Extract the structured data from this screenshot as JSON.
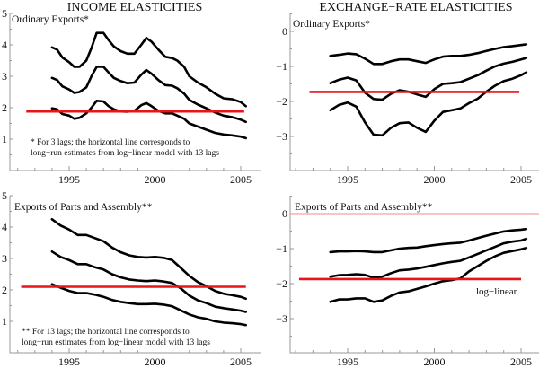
{
  "chart_data": [
    {
      "type": "line",
      "column_title": "INCOME ELASTICITIES",
      "title": "Ordinary Exports*",
      "note": [
        "* For 3 lags; the horizontal line corresponds to",
        "long−run estimates from log−linear model with 13 lags"
      ],
      "xticks": [
        1995,
        2000,
        2005
      ],
      "xlim": [
        1991.5,
        2006
      ],
      "yticks": [
        1,
        2,
        3,
        4,
        5
      ],
      "ylim": [
        0,
        5
      ],
      "hline": {
        "y": 1.88,
        "x": [
          1992.5,
          2005.2
        ],
        "color": "#e8141b"
      },
      "series": [
        {
          "name": "upper",
          "x": [
            1994,
            1994.3,
            1994.6,
            1995,
            1995.3,
            1995.6,
            1996,
            1996.3,
            1996.6,
            1997,
            1997.3,
            1997.6,
            1998,
            1998.4,
            1998.8,
            1999.2,
            1999.5,
            1999.8,
            2000.2,
            2000.6,
            2001,
            2001.3,
            2001.7,
            2002,
            2002.5,
            2003,
            2003.5,
            2004,
            2004.5,
            2005,
            2005.3
          ],
          "values": [
            3.92,
            3.85,
            3.6,
            3.45,
            3.3,
            3.3,
            3.5,
            3.9,
            4.38,
            4.38,
            4.15,
            3.95,
            3.8,
            3.72,
            3.72,
            4.0,
            4.22,
            4.1,
            3.85,
            3.62,
            3.58,
            3.5,
            3.3,
            3.0,
            2.8,
            2.65,
            2.45,
            2.3,
            2.27,
            2.18,
            2.05
          ]
        },
        {
          "name": "middle",
          "x": [
            1994,
            1994.3,
            1994.6,
            1995,
            1995.3,
            1995.6,
            1996,
            1996.3,
            1996.6,
            1997,
            1997.3,
            1997.6,
            1998,
            1998.4,
            1998.8,
            1999.2,
            1999.5,
            1999.8,
            2000.2,
            2000.6,
            2001,
            2001.3,
            2001.7,
            2002,
            2002.5,
            2003,
            2003.5,
            2004,
            2004.5,
            2005,
            2005.3
          ],
          "values": [
            2.95,
            2.88,
            2.68,
            2.58,
            2.47,
            2.5,
            2.65,
            3.0,
            3.3,
            3.3,
            3.12,
            2.95,
            2.85,
            2.78,
            2.8,
            3.05,
            3.2,
            3.08,
            2.88,
            2.72,
            2.7,
            2.62,
            2.45,
            2.25,
            2.1,
            1.98,
            1.85,
            1.75,
            1.7,
            1.62,
            1.55
          ]
        },
        {
          "name": "lower",
          "x": [
            1994,
            1994.3,
            1994.6,
            1995,
            1995.3,
            1995.6,
            1996,
            1996.3,
            1996.6,
            1997,
            1997.3,
            1997.6,
            1998,
            1998.4,
            1998.8,
            1999.2,
            1999.5,
            1999.8,
            2000.2,
            2000.6,
            2001,
            2001.3,
            2001.7,
            2002,
            2002.5,
            2003,
            2003.5,
            2004,
            2004.5,
            2005,
            2005.3
          ],
          "values": [
            1.98,
            1.95,
            1.8,
            1.75,
            1.65,
            1.68,
            1.82,
            2.0,
            2.22,
            2.2,
            2.05,
            1.95,
            1.88,
            1.87,
            1.9,
            2.08,
            2.15,
            2.05,
            1.9,
            1.82,
            1.82,
            1.75,
            1.65,
            1.5,
            1.4,
            1.3,
            1.2,
            1.15,
            1.12,
            1.08,
            1.03
          ]
        }
      ]
    },
    {
      "type": "line",
      "column_title": "EXCHANGE−RATE ELASTICITIES",
      "title": "Ordinary Exports*",
      "xticks": [
        1995,
        2000,
        2005
      ],
      "xlim": [
        1991.5,
        2006
      ],
      "yticks": [
        0,
        -1,
        -2,
        -3
      ],
      "ylim": [
        -4,
        0.5
      ],
      "hline": {
        "y": -1.73,
        "x": [
          1992.8,
          2004.9
        ],
        "color": "#e8141b"
      },
      "series": [
        {
          "name": "upper",
          "x": [
            1994,
            1994.5,
            1995,
            1995.5,
            1996,
            1996.5,
            1997,
            1997.5,
            1998,
            1998.5,
            1999,
            1999.5,
            2000,
            2000.5,
            2001,
            2001.5,
            2002,
            2002.5,
            2003,
            2003.5,
            2004,
            2004.5,
            2005,
            2005.3
          ],
          "values": [
            -0.7,
            -0.67,
            -0.63,
            -0.65,
            -0.78,
            -0.93,
            -0.93,
            -0.85,
            -0.8,
            -0.8,
            -0.85,
            -0.9,
            -0.8,
            -0.72,
            -0.7,
            -0.7,
            -0.67,
            -0.62,
            -0.56,
            -0.5,
            -0.45,
            -0.42,
            -0.39,
            -0.37
          ]
        },
        {
          "name": "middle",
          "x": [
            1994,
            1994.5,
            1995,
            1995.5,
            1996,
            1996.5,
            1997,
            1997.5,
            1998,
            1998.5,
            1999,
            1999.5,
            2000,
            2000.5,
            2001,
            2001.5,
            2002,
            2002.5,
            2003,
            2003.5,
            2004,
            2004.5,
            2005,
            2005.3
          ],
          "values": [
            -1.48,
            -1.38,
            -1.32,
            -1.4,
            -1.75,
            -1.93,
            -1.95,
            -1.78,
            -1.68,
            -1.72,
            -1.8,
            -1.87,
            -1.65,
            -1.5,
            -1.48,
            -1.45,
            -1.35,
            -1.25,
            -1.12,
            -1.0,
            -0.92,
            -0.87,
            -0.8,
            -0.76
          ]
        },
        {
          "name": "lower",
          "x": [
            1994,
            1994.5,
            1995,
            1995.5,
            1996,
            1996.5,
            1997,
            1997.5,
            1998,
            1998.5,
            1999,
            1999.5,
            2000,
            2000.5,
            2001,
            2001.5,
            2002,
            2002.5,
            2003,
            2003.5,
            2004,
            2004.5,
            2005,
            2005.3
          ],
          "values": [
            -2.25,
            -2.1,
            -2.03,
            -2.15,
            -2.6,
            -2.95,
            -2.97,
            -2.75,
            -2.62,
            -2.6,
            -2.75,
            -2.87,
            -2.55,
            -2.3,
            -2.25,
            -2.2,
            -2.05,
            -1.92,
            -1.72,
            -1.55,
            -1.42,
            -1.35,
            -1.25,
            -1.17
          ]
        }
      ]
    },
    {
      "type": "line",
      "column_title": "INCOME ELASTICITIES",
      "title": "Exports of Parts and Assembly**",
      "note": [
        "** For 13 lags; the horizontal line corresponds to",
        "long−run estimates from log−linear model with 13 lags"
      ],
      "xticks": [
        1995,
        2000,
        2005
      ],
      "xlim": [
        1991.5,
        2006
      ],
      "yticks": [
        1,
        2,
        3,
        4,
        5
      ],
      "ylim": [
        0,
        5
      ],
      "hline": {
        "y": 2.1,
        "x": [
          1992.2,
          2005.3
        ],
        "color": "#e8141b"
      },
      "series": [
        {
          "name": "upper",
          "x": [
            1994,
            1994.5,
            1995,
            1995.5,
            1996,
            1996.5,
            1997,
            1997.5,
            1998,
            1998.5,
            1999,
            1999.5,
            2000,
            2000.5,
            2001,
            2001.5,
            2002,
            2002.5,
            2003,
            2003.5,
            2004,
            2004.5,
            2005,
            2005.3
          ],
          "values": [
            4.25,
            4.05,
            3.92,
            3.75,
            3.75,
            3.65,
            3.55,
            3.35,
            3.2,
            3.1,
            3.05,
            3.03,
            3.05,
            3.02,
            2.95,
            2.7,
            2.45,
            2.25,
            2.12,
            1.97,
            1.88,
            1.83,
            1.78,
            1.72
          ]
        },
        {
          "name": "middle",
          "x": [
            1994,
            1994.5,
            1995,
            1995.5,
            1996,
            1996.5,
            1997,
            1997.5,
            1998,
            1998.5,
            1999,
            1999.5,
            2000,
            2000.5,
            2001,
            2001.5,
            2002,
            2002.5,
            2003,
            2003.5,
            2004,
            2004.5,
            2005,
            2005.3
          ],
          "values": [
            3.22,
            3.05,
            2.95,
            2.82,
            2.82,
            2.72,
            2.65,
            2.5,
            2.4,
            2.33,
            2.3,
            2.28,
            2.3,
            2.27,
            2.22,
            2.05,
            1.82,
            1.67,
            1.58,
            1.47,
            1.42,
            1.38,
            1.34,
            1.3
          ]
        },
        {
          "name": "lower",
          "x": [
            1994,
            1994.5,
            1995,
            1995.5,
            1996,
            1996.5,
            1997,
            1997.5,
            1998,
            1998.5,
            1999,
            1999.5,
            2000,
            2000.5,
            2001,
            2001.5,
            2002,
            2002.5,
            2003,
            2003.5,
            2004,
            2004.5,
            2005,
            2005.3
          ],
          "values": [
            2.18,
            2.07,
            1.97,
            1.9,
            1.9,
            1.85,
            1.78,
            1.68,
            1.62,
            1.58,
            1.55,
            1.55,
            1.56,
            1.53,
            1.48,
            1.35,
            1.22,
            1.13,
            1.08,
            1.0,
            0.96,
            0.94,
            0.91,
            0.88
          ]
        }
      ]
    },
    {
      "type": "line",
      "column_title": "EXCHANGE−RATE ELASTICITIES",
      "title": "Exports of Parts and Assembly**",
      "annotation": "log−linear",
      "xticks": [
        1995,
        2000,
        2005
      ],
      "xlim": [
        1991.5,
        2006
      ],
      "yticks": [
        0,
        -1,
        -2,
        -3
      ],
      "ylim": [
        -4,
        0.5
      ],
      "hline": {
        "y": -1.87,
        "x": [
          1992.2,
          2005.0
        ],
        "color": "#e8141b"
      },
      "zero_line": {
        "y": 0,
        "color": "#f08a8a"
      },
      "series": [
        {
          "name": "upper",
          "x": [
            1994,
            1994.5,
            1995,
            1995.5,
            1996,
            1996.5,
            1997,
            1997.5,
            1998,
            1998.5,
            1999,
            1999.5,
            2000,
            2000.5,
            2001,
            2001.5,
            2002,
            2002.5,
            2003,
            2003.5,
            2004,
            2004.5,
            2005,
            2005.3
          ],
          "values": [
            -1.1,
            -1.08,
            -1.08,
            -1.07,
            -1.08,
            -1.1,
            -1.1,
            -1.05,
            -1.0,
            -0.98,
            -0.97,
            -0.93,
            -0.9,
            -0.87,
            -0.85,
            -0.83,
            -0.77,
            -0.7,
            -0.63,
            -0.57,
            -0.51,
            -0.48,
            -0.46,
            -0.44
          ]
        },
        {
          "name": "middle",
          "x": [
            1994,
            1994.5,
            1995,
            1995.5,
            1996,
            1996.5,
            1997,
            1997.5,
            1998,
            1998.5,
            1999,
            1999.5,
            2000,
            2000.5,
            2001,
            2001.5,
            2002,
            2002.5,
            2003,
            2003.5,
            2004,
            2004.5,
            2005,
            2005.3
          ],
          "values": [
            -1.8,
            -1.76,
            -1.75,
            -1.73,
            -1.75,
            -1.83,
            -1.8,
            -1.7,
            -1.62,
            -1.6,
            -1.57,
            -1.52,
            -1.47,
            -1.42,
            -1.38,
            -1.35,
            -1.25,
            -1.15,
            -1.05,
            -0.95,
            -0.85,
            -0.8,
            -0.77,
            -0.72
          ]
        },
        {
          "name": "lower",
          "x": [
            1994,
            1994.5,
            1995,
            1995.5,
            1996,
            1996.5,
            1997,
            1997.5,
            1998,
            1998.5,
            1999,
            1999.5,
            2000,
            2000.5,
            2001,
            2001.5,
            2002,
            2002.5,
            2003,
            2003.5,
            2004,
            2004.5,
            2005,
            2005.3
          ],
          "values": [
            -2.52,
            -2.45,
            -2.45,
            -2.42,
            -2.42,
            -2.52,
            -2.48,
            -2.35,
            -2.25,
            -2.22,
            -2.15,
            -2.08,
            -2.0,
            -1.93,
            -1.9,
            -1.85,
            -1.65,
            -1.5,
            -1.35,
            -1.22,
            -1.12,
            -1.07,
            -1.02,
            -0.98
          ]
        }
      ]
    }
  ]
}
